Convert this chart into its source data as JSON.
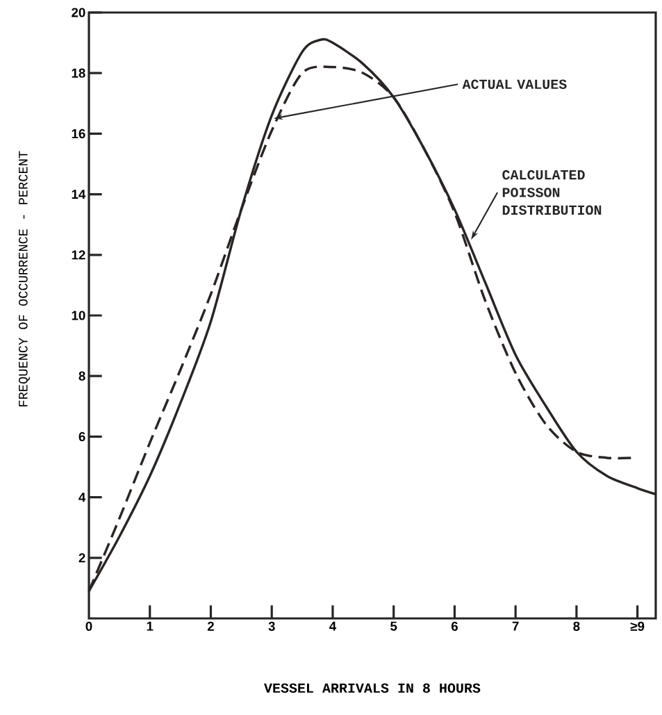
{
  "chart_data": {
    "type": "line",
    "xlabel": "VESSEL ARRIVALS IN 8 HOURS",
    "ylabel": "FREQUENCY OF OCCURRENCE - PERCENT",
    "xlim": [
      0,
      9.3
    ],
    "ylim": [
      0,
      20
    ],
    "xticks": [
      0,
      1,
      2,
      3,
      4,
      5,
      6,
      7,
      8,
      {
        "value": 9,
        "label": "≥9"
      }
    ],
    "yticks": [
      2,
      4,
      6,
      8,
      10,
      12,
      14,
      16,
      18,
      20
    ],
    "grid": false,
    "series": [
      {
        "color": "#2a2523",
        "line_style": "solid",
        "x": [
          0,
          0.5,
          1,
          1.5,
          2,
          2.5,
          3,
          3.5,
          3.8,
          4,
          4.5,
          5,
          5.5,
          6,
          6.5,
          7,
          7.5,
          8,
          8.5,
          9,
          9.3
        ],
        "values": [
          0.9,
          2.7,
          4.7,
          7.1,
          9.8,
          13.5,
          16.6,
          18.7,
          19.1,
          19.0,
          18.3,
          17.2,
          15.5,
          13.5,
          11.1,
          8.7,
          7.0,
          5.5,
          4.7,
          4.3,
          4.1
        ]
      },
      {
        "color": "#2a2523",
        "line_style": "dashed",
        "x": [
          0,
          0.5,
          1,
          1.5,
          2,
          2.5,
          3,
          3.5,
          4,
          4.5,
          5,
          5.5,
          6,
          6.5,
          7,
          7.5,
          8,
          8.5,
          8.9
        ],
        "values": [
          0.9,
          3.3,
          5.8,
          8.2,
          10.7,
          13.5,
          16.1,
          18.0,
          18.2,
          18.0,
          17.2,
          15.5,
          13.4,
          10.5,
          8.1,
          6.4,
          5.5,
          5.3,
          5.3
        ]
      }
    ],
    "annotations": [
      {
        "text": "ACTUAL VALUES",
        "x": 3.03,
        "y": 16.5
      },
      {
        "text": "CALCULATED POISSON DISTRIBUTION",
        "x": 6.27,
        "y": 12.5
      }
    ]
  }
}
